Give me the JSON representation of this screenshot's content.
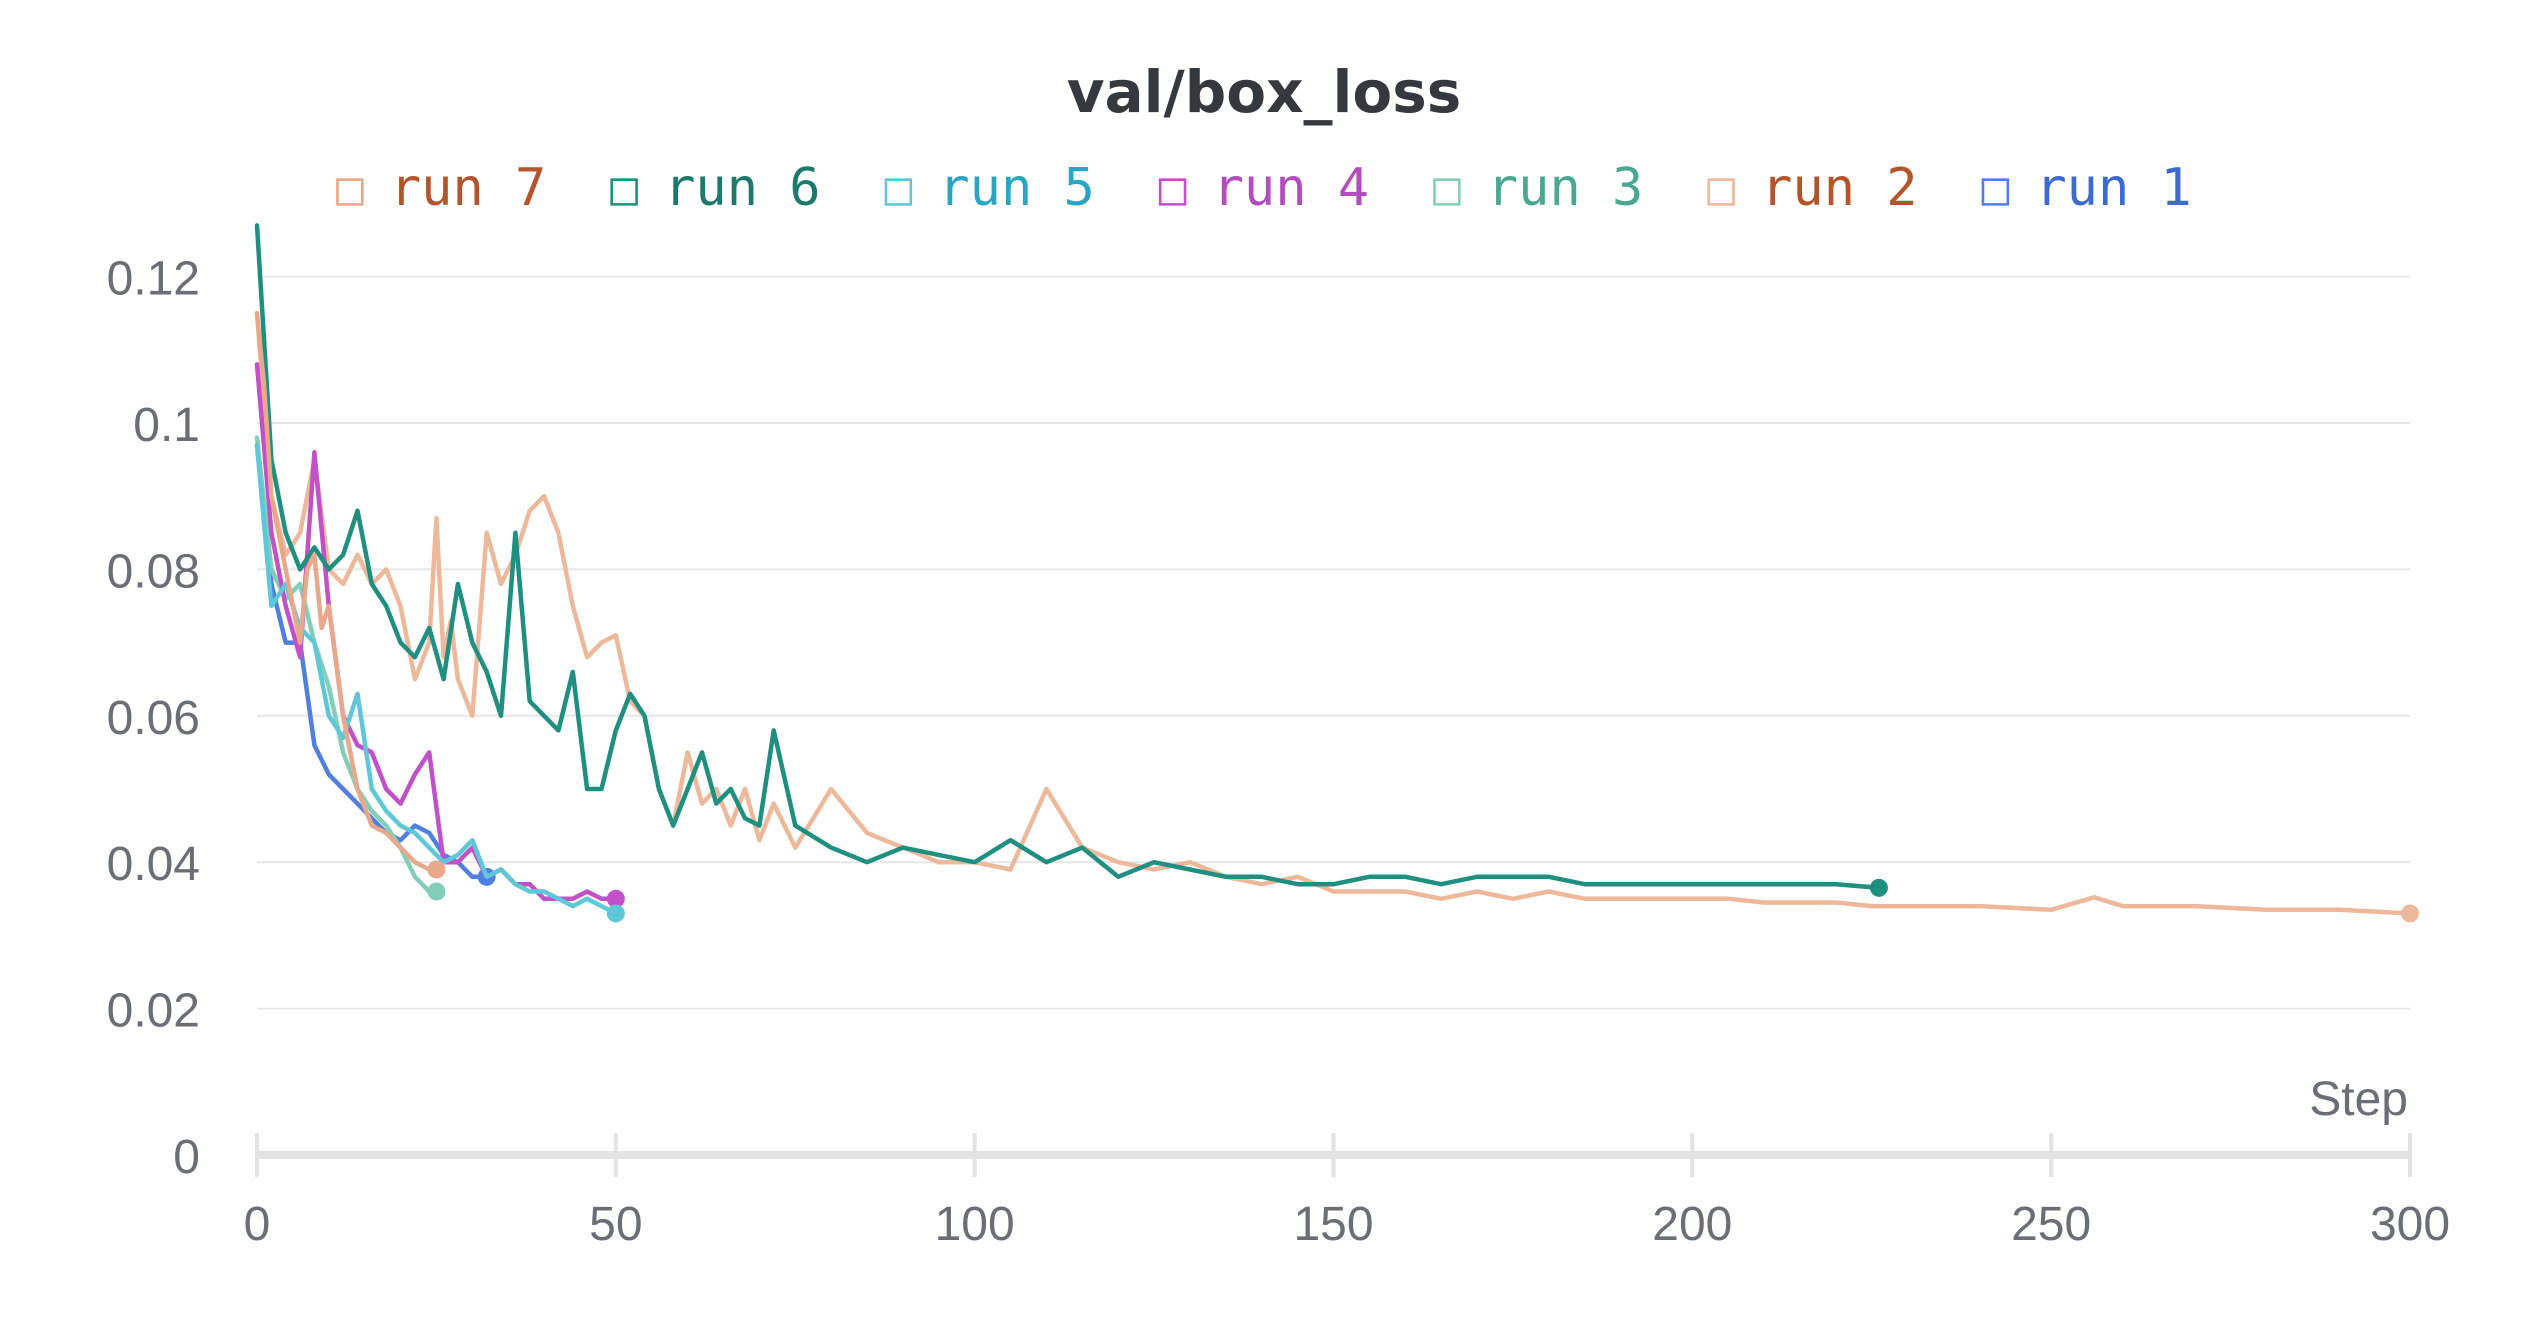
{
  "chart_data": {
    "type": "line",
    "title": "val/box_loss",
    "xlabel": "Step",
    "ylabel": "",
    "xlim": [
      0,
      300
    ],
    "ylim": [
      0,
      0.125
    ],
    "x_ticks": [
      "0",
      "50",
      "100",
      "150",
      "200",
      "250",
      "300"
    ],
    "y_ticks": [
      "0",
      "0.02",
      "0.04",
      "0.06",
      "0.08",
      "0.1",
      "0.12"
    ],
    "grid": "horizontal",
    "legend_position": "top-center",
    "legend_swatch_glyph": "□",
    "series": [
      {
        "name": "run 7",
        "color": "#e8a88a",
        "label_color": "#b5542a",
        "x": [
          0,
          1,
          2,
          3,
          4,
          5,
          6,
          7,
          8,
          9,
          10,
          12,
          14,
          16,
          18,
          20,
          22,
          24,
          25
        ],
        "y": [
          0.115,
          0.105,
          0.09,
          0.085,
          0.08,
          0.075,
          0.07,
          0.08,
          0.082,
          0.072,
          0.075,
          0.06,
          0.05,
          0.045,
          0.044,
          0.042,
          0.04,
          0.039,
          0.039
        ]
      },
      {
        "name": "run 6",
        "color": "#1f8f80",
        "label_color": "#1c7a6c",
        "x": [
          0,
          2,
          4,
          6,
          8,
          10,
          12,
          14,
          16,
          18,
          20,
          22,
          24,
          26,
          28,
          30,
          32,
          34,
          36,
          38,
          40,
          42,
          44,
          46,
          48,
          50,
          52,
          54,
          56,
          58,
          60,
          62,
          64,
          66,
          68,
          70,
          72,
          75,
          80,
          85,
          90,
          95,
          100,
          105,
          110,
          115,
          120,
          125,
          130,
          135,
          140,
          145,
          150,
          155,
          160,
          165,
          170,
          175,
          180,
          185,
          190,
          195,
          200,
          205,
          210,
          215,
          220,
          226
        ],
        "y": [
          0.127,
          0.095,
          0.085,
          0.08,
          0.083,
          0.08,
          0.082,
          0.088,
          0.078,
          0.075,
          0.07,
          0.068,
          0.072,
          0.065,
          0.078,
          0.07,
          0.066,
          0.06,
          0.085,
          0.062,
          0.06,
          0.058,
          0.066,
          0.05,
          0.05,
          0.058,
          0.063,
          0.06,
          0.05,
          0.045,
          0.05,
          0.055,
          0.048,
          0.05,
          0.046,
          0.045,
          0.058,
          0.045,
          0.042,
          0.04,
          0.042,
          0.041,
          0.04,
          0.043,
          0.04,
          0.042,
          0.038,
          0.04,
          0.039,
          0.038,
          0.038,
          0.037,
          0.037,
          0.038,
          0.038,
          0.037,
          0.038,
          0.038,
          0.038,
          0.037,
          0.037,
          0.037,
          0.037,
          0.037,
          0.037,
          0.037,
          0.037,
          0.0365
        ]
      },
      {
        "name": "run 5",
        "color": "#5fc8d8",
        "label_color": "#2aa6c4",
        "x": [
          0,
          2,
          4,
          6,
          8,
          10,
          12,
          14,
          16,
          18,
          20,
          22,
          24,
          26,
          28,
          30,
          32,
          34,
          36,
          38,
          40,
          42,
          44,
          46,
          48,
          50
        ],
        "y": [
          0.097,
          0.075,
          0.078,
          0.072,
          0.07,
          0.06,
          0.057,
          0.063,
          0.05,
          0.047,
          0.045,
          0.044,
          0.042,
          0.04,
          0.041,
          0.043,
          0.038,
          0.039,
          0.037,
          0.036,
          0.036,
          0.035,
          0.034,
          0.035,
          0.034,
          0.033
        ]
      },
      {
        "name": "run 4",
        "color": "#c150c9",
        "label_color": "#b24cbf",
        "x": [
          0,
          2,
          4,
          6,
          8,
          10,
          12,
          14,
          16,
          18,
          20,
          22,
          24,
          26,
          28,
          30,
          32,
          34,
          36,
          38,
          40,
          42,
          44,
          46,
          48,
          50
        ],
        "y": [
          0.108,
          0.085,
          0.075,
          0.068,
          0.096,
          0.075,
          0.06,
          0.056,
          0.055,
          0.05,
          0.048,
          0.052,
          0.055,
          0.04,
          0.04,
          0.042,
          0.038,
          0.039,
          0.037,
          0.037,
          0.035,
          0.035,
          0.035,
          0.036,
          0.035,
          0.035
        ]
      },
      {
        "name": "run 3",
        "color": "#83ceb8",
        "label_color": "#48a890",
        "x": [
          0,
          2,
          4,
          6,
          8,
          10,
          12,
          14,
          16,
          18,
          20,
          22,
          24,
          25
        ],
        "y": [
          0.098,
          0.08,
          0.076,
          0.078,
          0.07,
          0.064,
          0.055,
          0.05,
          0.047,
          0.045,
          0.042,
          0.038,
          0.036,
          0.036
        ]
      },
      {
        "name": "run 2",
        "color": "#eeb89a",
        "label_color": "#b5542a",
        "x": [
          0,
          2,
          4,
          6,
          8,
          10,
          12,
          14,
          16,
          18,
          20,
          22,
          24,
          25,
          26,
          27,
          28,
          30,
          32,
          34,
          36,
          38,
          40,
          42,
          44,
          46,
          48,
          50,
          52,
          54,
          56,
          58,
          60,
          62,
          64,
          66,
          68,
          70,
          72,
          75,
          80,
          85,
          90,
          95,
          100,
          105,
          110,
          115,
          120,
          125,
          130,
          135,
          140,
          145,
          150,
          155,
          160,
          165,
          170,
          175,
          180,
          185,
          190,
          195,
          200,
          205,
          210,
          215,
          220,
          225,
          230,
          240,
          250,
          256,
          260,
          270,
          280,
          290,
          300
        ],
        "y": [
          0.115,
          0.09,
          0.082,
          0.085,
          0.095,
          0.08,
          0.078,
          0.082,
          0.078,
          0.08,
          0.075,
          0.065,
          0.07,
          0.087,
          0.068,
          0.073,
          0.065,
          0.06,
          0.085,
          0.078,
          0.082,
          0.088,
          0.09,
          0.085,
          0.075,
          0.068,
          0.07,
          0.071,
          0.062,
          0.06,
          0.05,
          0.045,
          0.055,
          0.048,
          0.05,
          0.045,
          0.05,
          0.043,
          0.048,
          0.042,
          0.05,
          0.044,
          0.042,
          0.04,
          0.04,
          0.039,
          0.05,
          0.042,
          0.04,
          0.039,
          0.04,
          0.038,
          0.037,
          0.038,
          0.036,
          0.036,
          0.036,
          0.035,
          0.036,
          0.035,
          0.036,
          0.035,
          0.035,
          0.035,
          0.035,
          0.035,
          0.0345,
          0.0345,
          0.0345,
          0.034,
          0.034,
          0.034,
          0.0335,
          0.0352,
          0.034,
          0.034,
          0.0335,
          0.0335,
          0.033
        ]
      },
      {
        "name": "run 1",
        "color": "#4f7fe0",
        "label_color": "#3d6ad1",
        "x": [
          0,
          2,
          4,
          6,
          8,
          10,
          12,
          14,
          16,
          18,
          20,
          22,
          24,
          26,
          28,
          30,
          32
        ],
        "y": [
          0.097,
          0.078,
          0.07,
          0.07,
          0.056,
          0.052,
          0.05,
          0.048,
          0.046,
          0.044,
          0.043,
          0.045,
          0.044,
          0.041,
          0.04,
          0.038,
          0.038
        ]
      }
    ]
  }
}
